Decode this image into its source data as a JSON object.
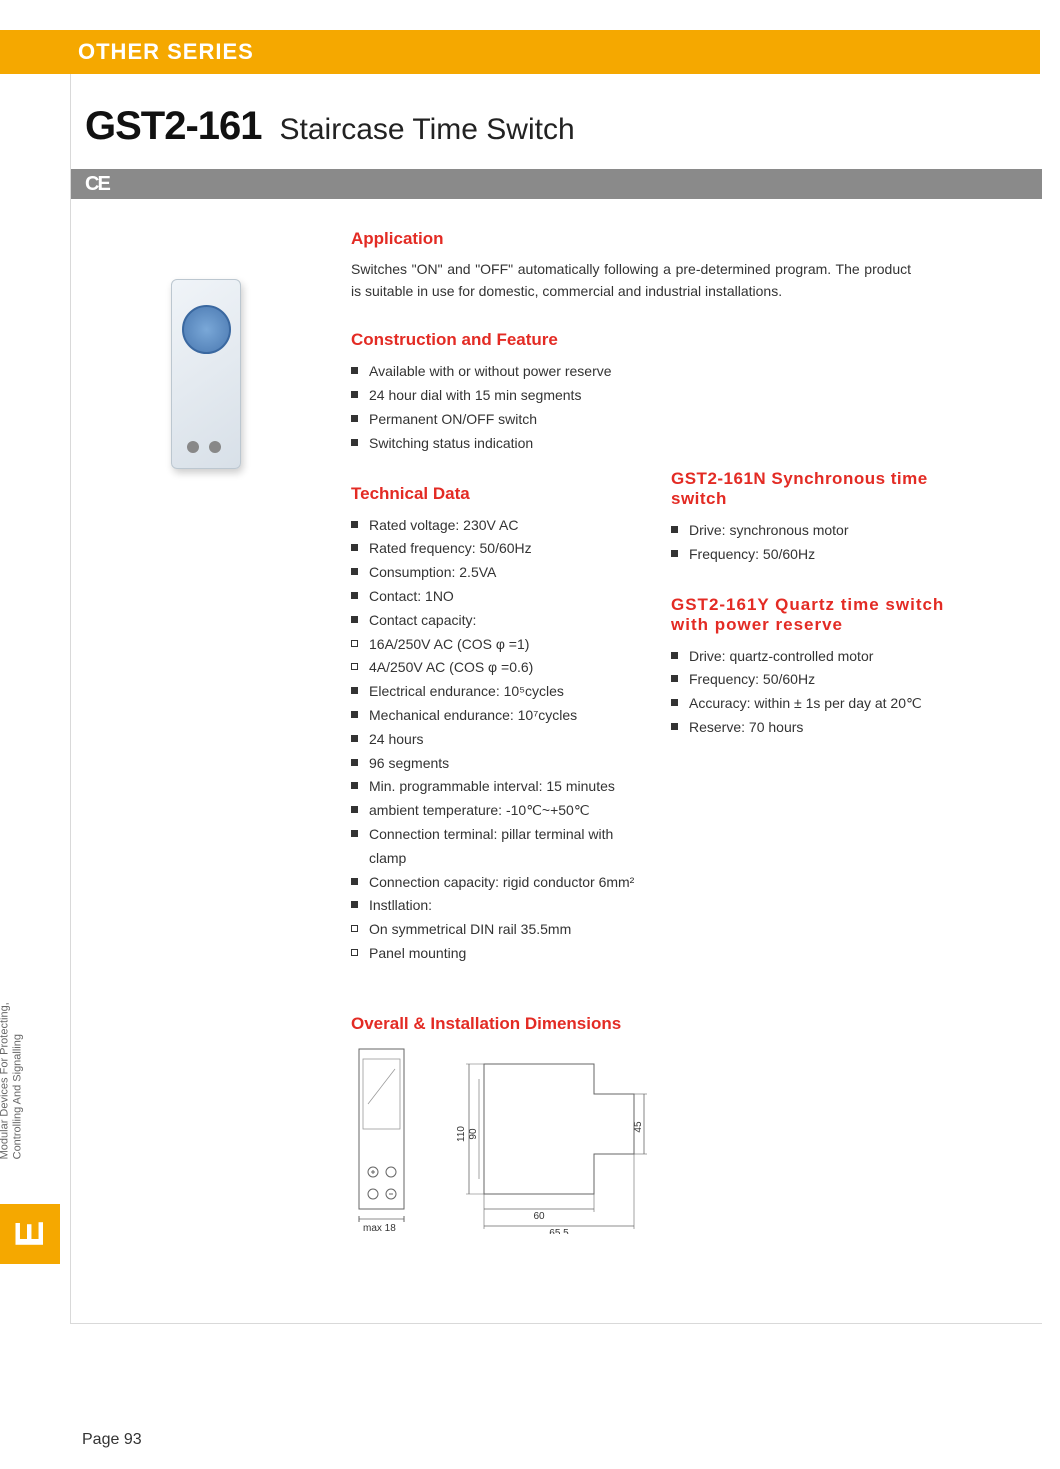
{
  "banner": {
    "title": "OTHER SERIES",
    "bg_color": "#f5a800",
    "text_color": "#ffffff"
  },
  "header": {
    "model": "GST2-161",
    "subtitle": "Staircase Time Switch",
    "ce_label": "CE",
    "ce_bar_color": "#8a8a8a"
  },
  "application": {
    "heading": "Application",
    "text": "Switches \"ON\" and \"OFF\" automatically following a pre-determined program. The product is suitable in use for domestic, commercial and industrial installations."
  },
  "construction": {
    "heading": "Construction and Feature",
    "items": [
      "Available with or without power reserve",
      "24 hour dial with 15 min segments",
      "Permanent ON/OFF switch",
      "Switching status indication"
    ]
  },
  "technical": {
    "heading": "Technical Data",
    "items": [
      {
        "text": "Rated voltage: 230V AC",
        "style": "filled"
      },
      {
        "text": "Rated frequency: 50/60Hz",
        "style": "filled"
      },
      {
        "text": "Consumption: 2.5VA",
        "style": "filled"
      },
      {
        "text": "Contact: 1NO",
        "style": "filled"
      },
      {
        "text": "Contact capacity:",
        "style": "filled"
      },
      {
        "text": "16A/250V AC (COS φ =1)",
        "style": "hollow"
      },
      {
        "text": "4A/250V AC (COS φ =0.6)",
        "style": "hollow"
      },
      {
        "text": "Electrical endurance: 10⁵cycles",
        "style": "filled"
      },
      {
        "text": "Mechanical endurance: 10⁷cycles",
        "style": "filled"
      },
      {
        "text": "24 hours",
        "style": "filled"
      },
      {
        "text": "96 segments",
        "style": "filled"
      },
      {
        "text": "Min. programmable interval: 15 minutes",
        "style": "filled"
      },
      {
        "text": "ambient temperature: -10℃~+50℃",
        "style": "filled"
      },
      {
        "text": "Connection terminal: pillar terminal with clamp",
        "style": "filled"
      },
      {
        "text": "Connection capacity: rigid conductor 6mm²",
        "style": "filled"
      },
      {
        "text": "Instllation:",
        "style": "filled"
      },
      {
        "text": "On symmetrical DIN rail 35.5mm",
        "style": "hollow"
      },
      {
        "text": "Panel mounting",
        "style": "hollow"
      }
    ]
  },
  "variant_n": {
    "heading": "GST2-161N Synchronous time switch",
    "items": [
      "Drive: synchronous motor",
      "Frequency: 50/60Hz"
    ]
  },
  "variant_y": {
    "heading": "GST2-161Y Quartz time switch with power reserve",
    "items": [
      "Drive: quartz-controlled motor",
      "Frequency: 50/60Hz",
      "Accuracy: within ± 1s per day at 20℃",
      "Reserve: 70 hours"
    ]
  },
  "dimensions": {
    "heading": "Overall & Installation Dimensions",
    "front": {
      "max_width_label": "max 18",
      "width": 18
    },
    "side": {
      "height_outer": 110,
      "height_inner": 90,
      "depth_rail": 45,
      "depth_body": 60,
      "depth_total": 65.5
    },
    "line_color": "#666666",
    "text_color": "#333333",
    "fontsize": 10
  },
  "side_tab": {
    "line1": "Modular Devices For Protecting,",
    "line2": "Controlling And Signalling",
    "letter": "E",
    "letter_bg": "#f5a800"
  },
  "page_label": "Page",
  "page_number": "93",
  "heading_color": "#e32b24"
}
